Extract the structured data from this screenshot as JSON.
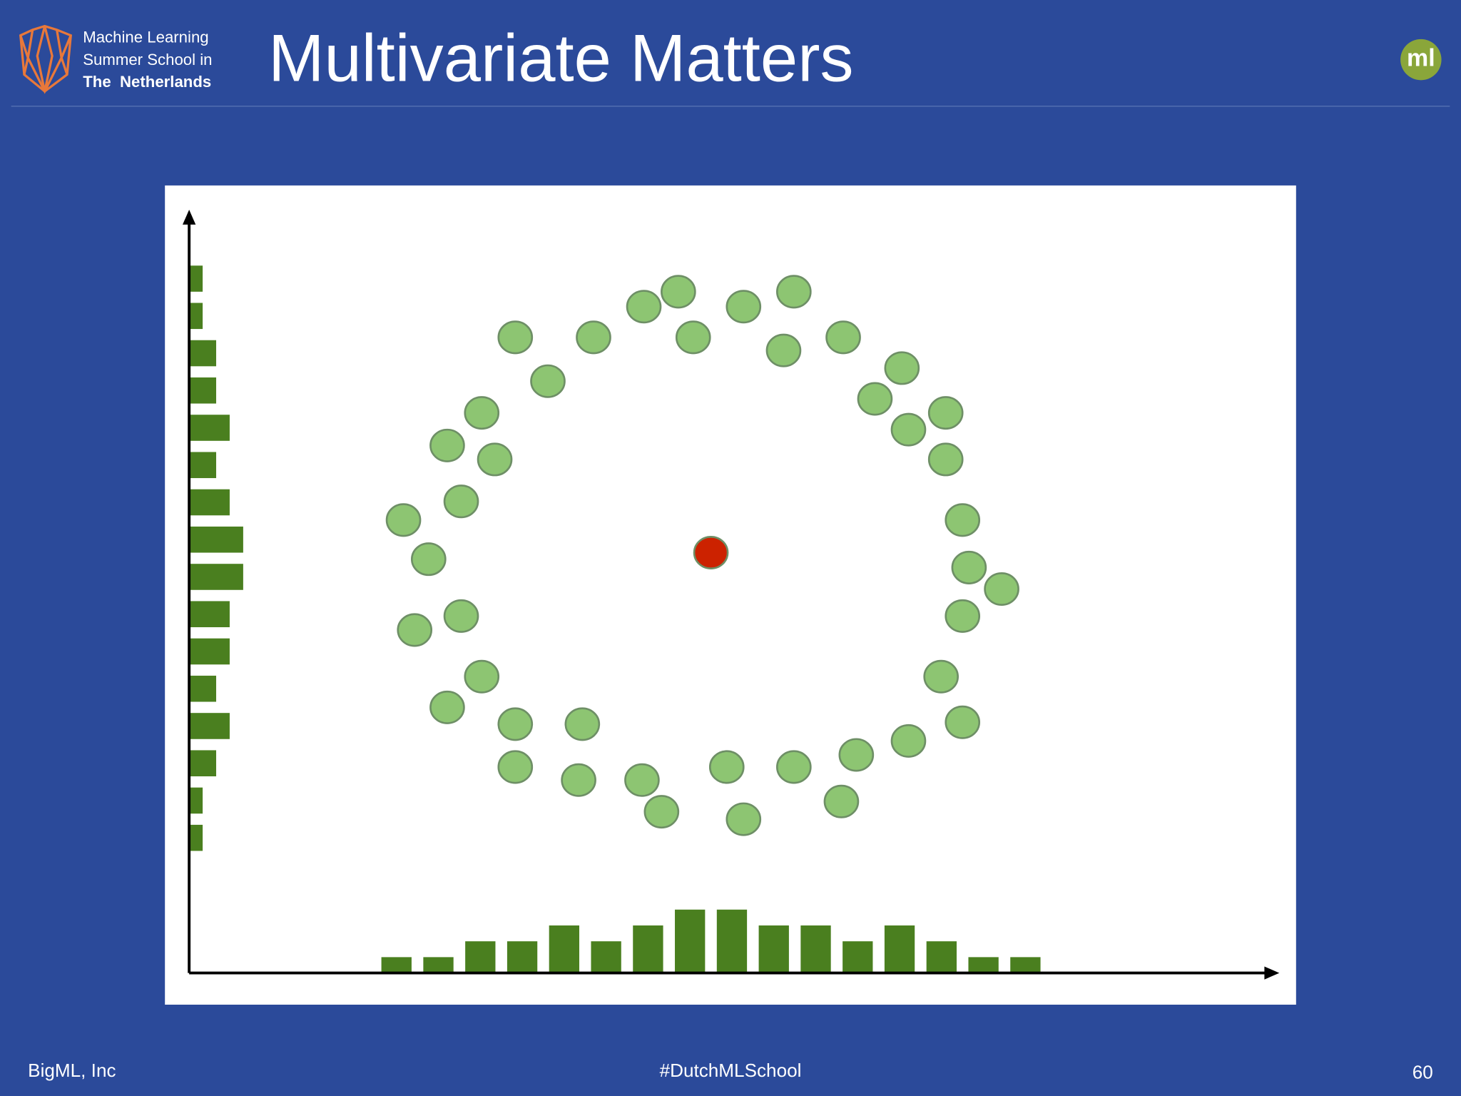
{
  "header": {
    "logo_lines": [
      "Machine Learning",
      "Summer School in",
      "The  Netherlands"
    ],
    "title": "Multivariate Matters",
    "badge": "ml"
  },
  "chart_data": {
    "type": "scatter",
    "xlim": [
      0,
      117
    ],
    "ylim": [
      0,
      82
    ],
    "series": [
      {
        "color": "#8dc572",
        "x": [
          35,
          43.4,
          48.8,
          52.5,
          54.1,
          59.5,
          64.9,
          63.8,
          70.2,
          76.5,
          38.5,
          31.4,
          27.7,
          32.8,
          29.2,
          23,
          25.7,
          29.2,
          24.2,
          31.4,
          27.7,
          35,
          42.2,
          35,
          41.8,
          48.6,
          50.7,
          57.7,
          59.5,
          64.9,
          70,
          71.6,
          77.2,
          83,
          80.7,
          83,
          83.7,
          87.2,
          83,
          81.2,
          77.2,
          73.6,
          81.2
        ],
        "y": [
          68.2,
          68.2,
          71.5,
          73.1,
          68.2,
          71.5,
          73.1,
          66.8,
          68.2,
          64.9,
          63.5,
          60.1,
          56.6,
          55.1,
          50.6,
          48.6,
          44.4,
          38.3,
          36.8,
          31.8,
          28.5,
          26.7,
          26.7,
          22.1,
          20.7,
          20.7,
          17.3,
          22.1,
          16.5,
          22.1,
          18.4,
          23.4,
          24.9,
          26.9,
          31.8,
          38.3,
          43.5,
          41.2,
          48.6,
          55.1,
          58.3,
          61.6,
          60.1
        ]
      },
      {
        "color": "#cc2200",
        "x": [
          56
        ],
        "y": [
          45.1
        ]
      }
    ],
    "x_histogram": {
      "color": "#4a7f1f",
      "bins": [
        20,
        24.5,
        29,
        33.5,
        38,
        42.5,
        47,
        51.5,
        56,
        60.5,
        65,
        69.5,
        74,
        78.5,
        83,
        87.5,
        92
      ],
      "counts": [
        1,
        1,
        2,
        2,
        3,
        2,
        3,
        4,
        4,
        3,
        3,
        2,
        3,
        2,
        1,
        1
      ]
    },
    "y_histogram": {
      "color": "#4a7f1f",
      "bins": [
        12.5,
        16.5,
        20.5,
        24.5,
        28.5,
        32.5,
        36.5,
        40.5,
        44.5,
        48.5,
        52.5,
        56.5,
        60.5,
        64.5,
        68.5,
        72.5,
        76.5
      ],
      "counts": [
        1,
        1,
        2,
        3,
        2,
        3,
        3,
        4,
        4,
        3,
        2,
        3,
        2,
        2,
        1,
        1
      ]
    }
  },
  "footer": {
    "left": "BigML, Inc",
    "center": "#DutchMLSchool",
    "right": "60"
  }
}
